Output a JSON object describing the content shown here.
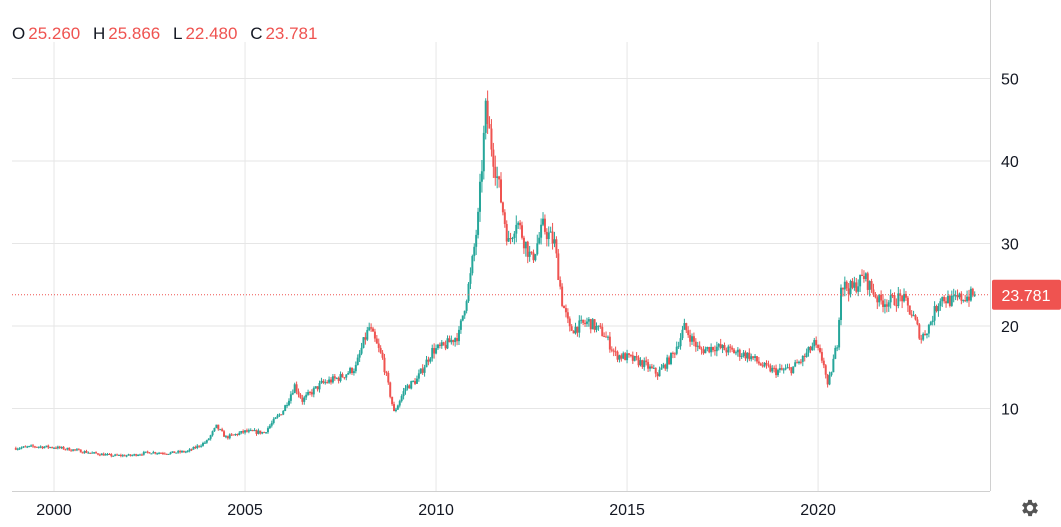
{
  "legend": {
    "open_label": "O",
    "open_value": "25.260",
    "high_label": "H",
    "high_value": "25.866",
    "low_label": "L",
    "low_value": "22.480",
    "close_label": "C",
    "close_value": "23.781"
  },
  "colors": {
    "up": "#26a69a",
    "down": "#ef5350",
    "grid": "#e6e6e6",
    "axis_text": "#131722",
    "price_line": "#ef5350"
  },
  "icons": {
    "settings": "gear-icon"
  },
  "chart_data": {
    "type": "candlestick",
    "title": "",
    "xlabel": "",
    "ylabel": "",
    "x_range": [
      1998.9,
      2024.5
    ],
    "y_range": [
      0,
      52
    ],
    "x_ticks": [
      {
        "value": 2000,
        "label": "2000"
      },
      {
        "value": 2005,
        "label": "2005"
      },
      {
        "value": 2010,
        "label": "2010"
      },
      {
        "value": 2015,
        "label": "2015"
      },
      {
        "value": 2020,
        "label": "2020"
      }
    ],
    "y_ticks": [
      {
        "value": 10,
        "label": "10"
      },
      {
        "value": 20,
        "label": "20"
      },
      {
        "value": 30,
        "label": "30"
      },
      {
        "value": 40,
        "label": "40"
      },
      {
        "value": 50,
        "label": "50"
      }
    ],
    "grid": true,
    "last_price": {
      "value": 23.781,
      "label": "23.781"
    },
    "approx_closing_path": [
      [
        1999.0,
        5.2
      ],
      [
        1999.5,
        5.4
      ],
      [
        2000.0,
        5.3
      ],
      [
        2000.5,
        5.0
      ],
      [
        2001.0,
        4.6
      ],
      [
        2001.5,
        4.3
      ],
      [
        2002.0,
        4.3
      ],
      [
        2002.5,
        4.7
      ],
      [
        2003.0,
        4.6
      ],
      [
        2003.5,
        4.8
      ],
      [
        2004.0,
        6.0
      ],
      [
        2004.25,
        7.8
      ],
      [
        2004.5,
        6.5
      ],
      [
        2005.0,
        7.2
      ],
      [
        2005.5,
        7.1
      ],
      [
        2006.0,
        9.8
      ],
      [
        2006.3,
        12.8
      ],
      [
        2006.5,
        11.0
      ],
      [
        2007.0,
        13.0
      ],
      [
        2007.5,
        13.8
      ],
      [
        2007.9,
        15.0
      ],
      [
        2008.1,
        18.0
      ],
      [
        2008.25,
        19.8
      ],
      [
        2008.6,
        16.0
      ],
      [
        2008.9,
        9.5
      ],
      [
        2009.2,
        12.5
      ],
      [
        2009.5,
        13.5
      ],
      [
        2009.9,
        17.0
      ],
      [
        2010.2,
        17.5
      ],
      [
        2010.6,
        19.0
      ],
      [
        2010.9,
        26.0
      ],
      [
        2011.1,
        33.0
      ],
      [
        2011.3,
        46.0
      ],
      [
        2011.6,
        38.0
      ],
      [
        2011.9,
        30.0
      ],
      [
        2012.1,
        33.0
      ],
      [
        2012.5,
        28.0
      ],
      [
        2012.8,
        32.0
      ],
      [
        2013.1,
        30.0
      ],
      [
        2013.3,
        23.0
      ],
      [
        2013.5,
        19.5
      ],
      [
        2014.0,
        20.5
      ],
      [
        2014.4,
        19.0
      ],
      [
        2014.7,
        16.5
      ],
      [
        2015.0,
        16.2
      ],
      [
        2015.4,
        15.5
      ],
      [
        2015.8,
        14.2
      ],
      [
        2016.2,
        16.5
      ],
      [
        2016.5,
        19.8
      ],
      [
        2016.9,
        17.0
      ],
      [
        2017.3,
        17.5
      ],
      [
        2017.7,
        17.0
      ],
      [
        2018.2,
        16.4
      ],
      [
        2018.6,
        15.0
      ],
      [
        2018.9,
        14.5
      ],
      [
        2019.3,
        14.8
      ],
      [
        2019.6,
        16.0
      ],
      [
        2019.9,
        17.8
      ],
      [
        2020.15,
        15.5
      ],
      [
        2020.25,
        12.5
      ],
      [
        2020.5,
        18.0
      ],
      [
        2020.6,
        25.0
      ],
      [
        2020.9,
        24.5
      ],
      [
        2021.2,
        26.0
      ],
      [
        2021.6,
        23.0
      ],
      [
        2021.9,
        23.0
      ],
      [
        2022.2,
        23.5
      ],
      [
        2022.5,
        21.0
      ],
      [
        2022.7,
        18.5
      ],
      [
        2022.9,
        20.0
      ],
      [
        2023.2,
        23.5
      ],
      [
        2023.5,
        23.0
      ],
      [
        2023.8,
        23.5
      ],
      [
        2024.1,
        23.781
      ]
    ]
  }
}
